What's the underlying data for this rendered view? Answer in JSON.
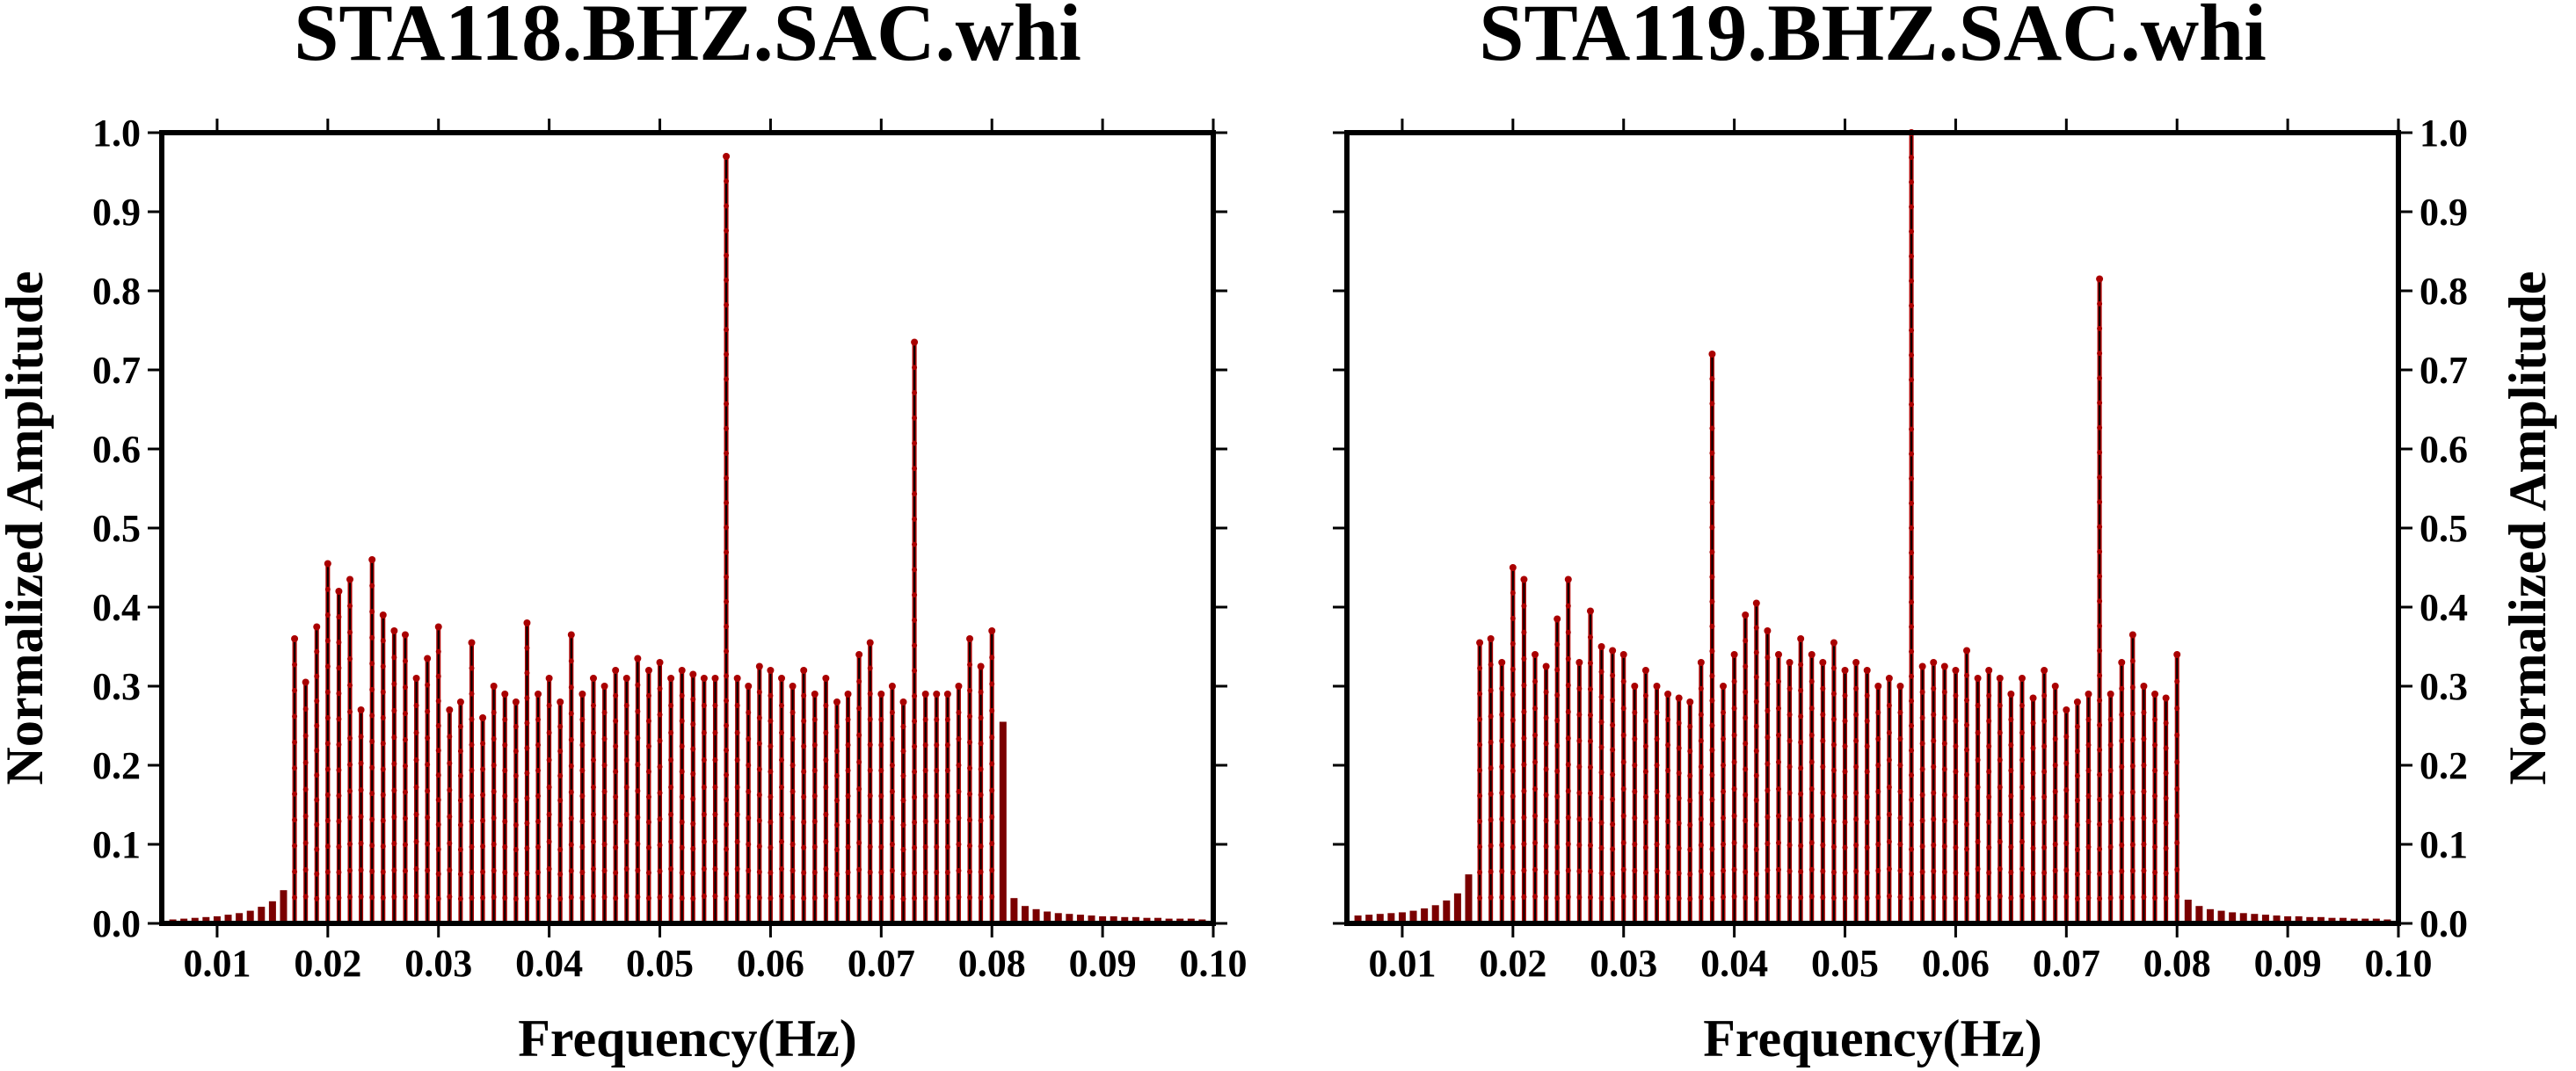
{
  "chart_data": [
    {
      "type": "stem",
      "title": "STA118.BHZ.SAC.whi",
      "xlabel": "Frequency(Hz)",
      "ylabel": "Normalized Amplitude",
      "ylabel_side": "left",
      "xlim": [
        0.005,
        0.1
      ],
      "ylim": [
        0.0,
        1.0
      ],
      "xticks": [
        "0.01",
        "0.02",
        "0.03",
        "0.04",
        "0.05",
        "0.06",
        "0.07",
        "0.08",
        "0.09",
        "0.10"
      ],
      "yticks": [
        "0.0",
        "0.1",
        "0.2",
        "0.3",
        "0.4",
        "0.5",
        "0.6",
        "0.7",
        "0.8",
        "0.9",
        "1.0"
      ],
      "stem_color": "#000000",
      "marker_color": "#aa0000",
      "band_hz": [
        0.017,
        0.08
      ],
      "series": [
        {
          "x": [
            0.006,
            0.007,
            0.008,
            0.009,
            0.01,
            0.011,
            0.012,
            0.013,
            0.014,
            0.015,
            0.016,
            0.017,
            0.018,
            0.019,
            0.02,
            0.021,
            0.022,
            0.023,
            0.024,
            0.025,
            0.026,
            0.027,
            0.028,
            0.029,
            0.03,
            0.031,
            0.032,
            0.033,
            0.034,
            0.035,
            0.036,
            0.037,
            0.038,
            0.039,
            0.04,
            0.041,
            0.042,
            0.043,
            0.044,
            0.045,
            0.046,
            0.047,
            0.048,
            0.049,
            0.05,
            0.051,
            0.052,
            0.053,
            0.054,
            0.055,
            0.056,
            0.057,
            0.058,
            0.059,
            0.06,
            0.061,
            0.062,
            0.063,
            0.064,
            0.065,
            0.066,
            0.067,
            0.068,
            0.069,
            0.07,
            0.071,
            0.072,
            0.073,
            0.074,
            0.075,
            0.076,
            0.077,
            0.078,
            0.079,
            0.08,
            0.081,
            0.082,
            0.083,
            0.084,
            0.085,
            0.086,
            0.087,
            0.088,
            0.089,
            0.09,
            0.091,
            0.092,
            0.093,
            0.094,
            0.095,
            0.096,
            0.097,
            0.098,
            0.099
          ],
          "y": [
            0.005,
            0.006,
            0.007,
            0.008,
            0.009,
            0.011,
            0.013,
            0.016,
            0.021,
            0.028,
            0.042,
            0.36,
            0.305,
            0.375,
            0.455,
            0.42,
            0.435,
            0.27,
            0.46,
            0.39,
            0.37,
            0.365,
            0.31,
            0.335,
            0.375,
            0.27,
            0.28,
            0.355,
            0.26,
            0.3,
            0.29,
            0.28,
            0.38,
            0.29,
            0.31,
            0.28,
            0.365,
            0.29,
            0.31,
            0.3,
            0.32,
            0.31,
            0.335,
            0.32,
            0.33,
            0.31,
            0.32,
            0.315,
            0.31,
            0.31,
            0.97,
            0.31,
            0.3,
            0.325,
            0.32,
            0.31,
            0.3,
            0.32,
            0.29,
            0.31,
            0.28,
            0.29,
            0.34,
            0.355,
            0.29,
            0.3,
            0.28,
            0.735,
            0.29,
            0.29,
            0.29,
            0.3,
            0.36,
            0.325,
            0.37,
            0.255,
            0.032,
            0.022,
            0.018,
            0.015,
            0.013,
            0.012,
            0.011,
            0.01,
            0.009,
            0.009,
            0.008,
            0.008,
            0.007,
            0.007,
            0.006,
            0.006,
            0.006,
            0.005
          ]
        }
      ]
    },
    {
      "type": "stem",
      "title": "STA119.BHZ.SAC.whi",
      "xlabel": "Frequency(Hz)",
      "ylabel": "Normalized Amplitude",
      "ylabel_side": "right",
      "xlim": [
        0.005,
        0.1
      ],
      "ylim": [
        0.0,
        1.0
      ],
      "xticks": [
        "0.01",
        "0.02",
        "0.03",
        "0.04",
        "0.05",
        "0.06",
        "0.07",
        "0.08",
        "0.09",
        "0.10"
      ],
      "yticks": [
        "0.0",
        "0.1",
        "0.2",
        "0.3",
        "0.4",
        "0.5",
        "0.6",
        "0.7",
        "0.8",
        "0.9",
        "1.0"
      ],
      "stem_color": "#000000",
      "marker_color": "#aa0000",
      "band_hz": [
        0.017,
        0.08
      ],
      "series": [
        {
          "x": [
            0.006,
            0.007,
            0.008,
            0.009,
            0.01,
            0.011,
            0.012,
            0.013,
            0.014,
            0.015,
            0.016,
            0.017,
            0.018,
            0.019,
            0.02,
            0.021,
            0.022,
            0.023,
            0.024,
            0.025,
            0.026,
            0.027,
            0.028,
            0.029,
            0.03,
            0.031,
            0.032,
            0.033,
            0.034,
            0.035,
            0.036,
            0.037,
            0.038,
            0.039,
            0.04,
            0.041,
            0.042,
            0.043,
            0.044,
            0.045,
            0.046,
            0.047,
            0.048,
            0.049,
            0.05,
            0.051,
            0.052,
            0.053,
            0.054,
            0.055,
            0.056,
            0.057,
            0.058,
            0.059,
            0.06,
            0.061,
            0.062,
            0.063,
            0.064,
            0.065,
            0.066,
            0.067,
            0.068,
            0.069,
            0.07,
            0.071,
            0.072,
            0.073,
            0.074,
            0.075,
            0.076,
            0.077,
            0.078,
            0.079,
            0.08,
            0.081,
            0.082,
            0.083,
            0.084,
            0.085,
            0.086,
            0.087,
            0.088,
            0.089,
            0.09,
            0.091,
            0.092,
            0.093,
            0.094,
            0.095,
            0.096,
            0.097,
            0.098,
            0.099
          ],
          "y": [
            0.01,
            0.011,
            0.012,
            0.013,
            0.014,
            0.016,
            0.019,
            0.023,
            0.029,
            0.038,
            0.062,
            0.355,
            0.36,
            0.33,
            0.45,
            0.435,
            0.34,
            0.325,
            0.385,
            0.435,
            0.33,
            0.395,
            0.35,
            0.345,
            0.34,
            0.3,
            0.32,
            0.3,
            0.29,
            0.285,
            0.28,
            0.33,
            0.72,
            0.3,
            0.34,
            0.39,
            0.405,
            0.37,
            0.34,
            0.33,
            0.36,
            0.34,
            0.33,
            0.355,
            0.32,
            0.33,
            0.32,
            0.3,
            0.31,
            0.3,
            1.0,
            0.325,
            0.33,
            0.325,
            0.32,
            0.345,
            0.31,
            0.32,
            0.31,
            0.29,
            0.31,
            0.285,
            0.32,
            0.3,
            0.27,
            0.28,
            0.29,
            0.815,
            0.29,
            0.33,
            0.365,
            0.3,
            0.29,
            0.285,
            0.34,
            0.03,
            0.022,
            0.018,
            0.016,
            0.014,
            0.013,
            0.012,
            0.011,
            0.01,
            0.009,
            0.009,
            0.008,
            0.008,
            0.007,
            0.007,
            0.006,
            0.006,
            0.006,
            0.005
          ]
        }
      ]
    }
  ]
}
